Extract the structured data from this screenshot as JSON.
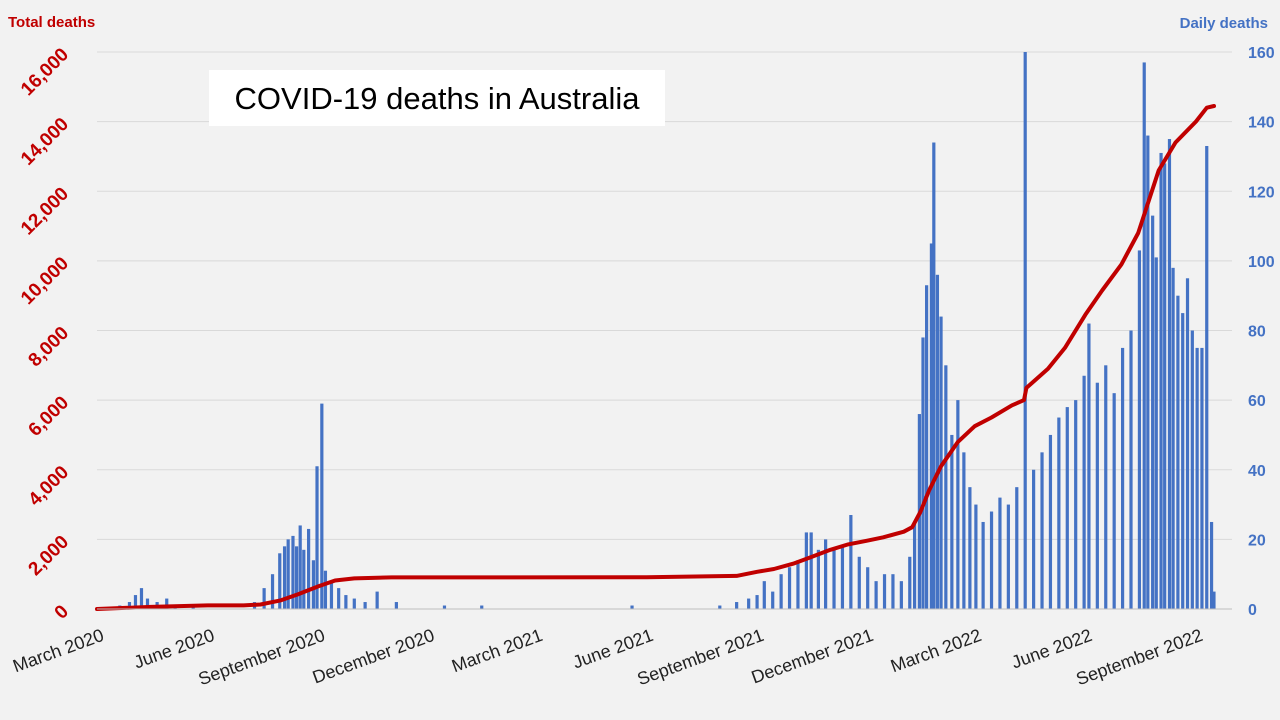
{
  "colors": {
    "background": "#f2f2f2",
    "total_line": "#c00000",
    "daily_bars": "#4472c4",
    "gridline": "#d9d9d9",
    "title_box": "#ffffff"
  },
  "chart_data": {
    "type": "bar",
    "title": "COVID-19 deaths in Australia",
    "y_left": {
      "label": "Total deaths",
      "range": [
        0,
        16000
      ],
      "ticks": [
        "0",
        "2,000",
        "4,000",
        "6,000",
        "8,000",
        "10,000",
        "12,000",
        "14,000",
        "16,000"
      ],
      "tick_values": [
        0,
        2000,
        4000,
        6000,
        8000,
        10000,
        12000,
        14000,
        16000
      ]
    },
    "y_right": {
      "label": "Daily deaths",
      "range": [
        0,
        160
      ],
      "ticks": [
        "0",
        "20",
        "40",
        "60",
        "80",
        "100",
        "120",
        "140",
        "160"
      ],
      "tick_values": [
        0,
        20,
        40,
        60,
        80,
        100,
        120,
        140,
        160
      ]
    },
    "x_axis": {
      "range": [
        "2020-03-01",
        "2022-10-01"
      ],
      "ticks": [
        {
          "date": "2020-03-01",
          "label": "March 2020"
        },
        {
          "date": "2020-06-01",
          "label": "June 2020"
        },
        {
          "date": "2020-09-01",
          "label": "September 2020"
        },
        {
          "date": "2020-12-01",
          "label": "December 2020"
        },
        {
          "date": "2021-03-01",
          "label": "March 2021"
        },
        {
          "date": "2021-06-01",
          "label": "June 2021"
        },
        {
          "date": "2021-09-01",
          "label": "September 2021"
        },
        {
          "date": "2021-12-01",
          "label": "December 2021"
        },
        {
          "date": "2022-03-01",
          "label": "March 2022"
        },
        {
          "date": "2022-06-01",
          "label": "June 2022"
        },
        {
          "date": "2022-09-01",
          "label": "September 2022"
        }
      ]
    },
    "grid": "horizontal",
    "series": [
      {
        "type": "bar",
        "axis": "right",
        "values_at": [
          [
            "2020-03-20",
            1
          ],
          [
            "2020-03-28",
            2
          ],
          [
            "2020-04-02",
            4
          ],
          [
            "2020-04-07",
            6
          ],
          [
            "2020-04-12",
            3
          ],
          [
            "2020-04-20",
            2
          ],
          [
            "2020-04-28",
            3
          ],
          [
            "2020-05-05",
            1
          ],
          [
            "2020-05-20",
            1
          ],
          [
            "2020-07-10",
            2
          ],
          [
            "2020-07-18",
            6
          ],
          [
            "2020-07-25",
            10
          ],
          [
            "2020-07-31",
            16
          ],
          [
            "2020-08-04",
            18
          ],
          [
            "2020-08-07",
            20
          ],
          [
            "2020-08-11",
            21
          ],
          [
            "2020-08-14",
            18
          ],
          [
            "2020-08-17",
            24
          ],
          [
            "2020-08-20",
            17
          ],
          [
            "2020-08-24",
            23
          ],
          [
            "2020-08-28",
            14
          ],
          [
            "2020-08-31",
            41
          ],
          [
            "2020-09-04",
            59
          ],
          [
            "2020-09-07",
            11
          ],
          [
            "2020-09-12",
            8
          ],
          [
            "2020-09-18",
            6
          ],
          [
            "2020-09-24",
            4
          ],
          [
            "2020-10-01",
            3
          ],
          [
            "2020-10-10",
            2
          ],
          [
            "2020-10-20",
            5
          ],
          [
            "2020-11-05",
            2
          ],
          [
            "2020-12-15",
            1
          ],
          [
            "2021-01-15",
            1
          ],
          [
            "2021-05-20",
            1
          ],
          [
            "2021-08-01",
            1
          ],
          [
            "2021-08-15",
            2
          ],
          [
            "2021-08-25",
            3
          ],
          [
            "2021-09-01",
            4
          ],
          [
            "2021-09-07",
            8
          ],
          [
            "2021-09-14",
            5
          ],
          [
            "2021-09-21",
            10
          ],
          [
            "2021-09-28",
            12
          ],
          [
            "2021-10-05",
            14
          ],
          [
            "2021-10-12",
            22
          ],
          [
            "2021-10-16",
            22
          ],
          [
            "2021-10-22",
            17
          ],
          [
            "2021-10-28",
            20
          ],
          [
            "2021-11-04",
            17
          ],
          [
            "2021-11-11",
            18
          ],
          [
            "2021-11-18",
            27
          ],
          [
            "2021-11-25",
            15
          ],
          [
            "2021-12-02",
            12
          ],
          [
            "2021-12-09",
            8
          ],
          [
            "2021-12-16",
            10
          ],
          [
            "2021-12-23",
            10
          ],
          [
            "2021-12-30",
            8
          ],
          [
            "2022-01-06",
            15
          ],
          [
            "2022-01-10",
            25
          ],
          [
            "2022-01-14",
            56
          ],
          [
            "2022-01-17",
            78
          ],
          [
            "2022-01-20",
            93
          ],
          [
            "2022-01-24",
            105
          ],
          [
            "2022-01-26",
            134
          ],
          [
            "2022-01-29",
            96
          ],
          [
            "2022-02-01",
            84
          ],
          [
            "2022-02-05",
            70
          ],
          [
            "2022-02-10",
            50
          ],
          [
            "2022-02-15",
            60
          ],
          [
            "2022-02-20",
            45
          ],
          [
            "2022-02-25",
            35
          ],
          [
            "2022-03-02",
            30
          ],
          [
            "2022-03-08",
            25
          ],
          [
            "2022-03-15",
            28
          ],
          [
            "2022-03-22",
            32
          ],
          [
            "2022-03-29",
            30
          ],
          [
            "2022-04-05",
            35
          ],
          [
            "2022-04-12",
            160
          ],
          [
            "2022-04-19",
            40
          ],
          [
            "2022-04-26",
            45
          ],
          [
            "2022-05-03",
            50
          ],
          [
            "2022-05-10",
            55
          ],
          [
            "2022-05-17",
            58
          ],
          [
            "2022-05-24",
            60
          ],
          [
            "2022-05-31",
            67
          ],
          [
            "2022-06-04",
            82
          ],
          [
            "2022-06-11",
            65
          ],
          [
            "2022-06-18",
            70
          ],
          [
            "2022-06-25",
            62
          ],
          [
            "2022-07-02",
            75
          ],
          [
            "2022-07-09",
            80
          ],
          [
            "2022-07-16",
            103
          ],
          [
            "2022-07-20",
            157
          ],
          [
            "2022-07-23",
            136
          ],
          [
            "2022-07-27",
            113
          ],
          [
            "2022-07-30",
            101
          ],
          [
            "2022-08-03",
            131
          ],
          [
            "2022-08-06",
            128
          ],
          [
            "2022-08-10",
            135
          ],
          [
            "2022-08-13",
            98
          ],
          [
            "2022-08-17",
            90
          ],
          [
            "2022-08-21",
            85
          ],
          [
            "2022-08-25",
            95
          ],
          [
            "2022-08-29",
            80
          ],
          [
            "2022-09-02",
            75
          ],
          [
            "2022-09-06",
            75
          ],
          [
            "2022-09-10",
            133
          ],
          [
            "2022-09-14",
            25
          ],
          [
            "2022-09-16",
            5
          ]
        ]
      },
      {
        "type": "line",
        "axis": "left",
        "points": [
          [
            "2020-03-01",
            0
          ],
          [
            "2020-04-15",
            60
          ],
          [
            "2020-06-01",
            102
          ],
          [
            "2020-07-01",
            104
          ],
          [
            "2020-07-15",
            130
          ],
          [
            "2020-08-01",
            250
          ],
          [
            "2020-08-15",
            420
          ],
          [
            "2020-09-01",
            650
          ],
          [
            "2020-09-15",
            820
          ],
          [
            "2020-10-01",
            880
          ],
          [
            "2020-11-01",
            907
          ],
          [
            "2021-06-01",
            910
          ],
          [
            "2021-08-15",
            950
          ],
          [
            "2021-09-01",
            1070
          ],
          [
            "2021-09-15",
            1150
          ],
          [
            "2021-10-01",
            1300
          ],
          [
            "2021-10-15",
            1480
          ],
          [
            "2021-11-01",
            1700
          ],
          [
            "2021-11-15",
            1850
          ],
          [
            "2021-12-01",
            1960
          ],
          [
            "2021-12-15",
            2060
          ],
          [
            "2022-01-01",
            2220
          ],
          [
            "2022-01-08",
            2350
          ],
          [
            "2022-01-15",
            2800
          ],
          [
            "2022-01-22",
            3400
          ],
          [
            "2022-02-01",
            4100
          ],
          [
            "2022-02-15",
            4800
          ],
          [
            "2022-03-01",
            5250
          ],
          [
            "2022-03-15",
            5500
          ],
          [
            "2022-04-01",
            5850
          ],
          [
            "2022-04-11",
            6000
          ],
          [
            "2022-04-13",
            6350
          ],
          [
            "2022-05-01",
            6900
          ],
          [
            "2022-05-15",
            7500
          ],
          [
            "2022-06-01",
            8450
          ],
          [
            "2022-06-15",
            9150
          ],
          [
            "2022-07-01",
            9900
          ],
          [
            "2022-07-15",
            10800
          ],
          [
            "2022-08-01",
            12600
          ],
          [
            "2022-08-15",
            13400
          ],
          [
            "2022-09-01",
            14000
          ],
          [
            "2022-09-10",
            14400
          ],
          [
            "2022-09-16",
            14450
          ]
        ]
      }
    ]
  }
}
